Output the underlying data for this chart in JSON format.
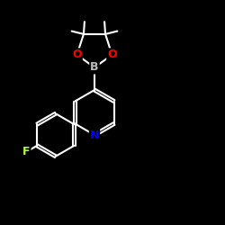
{
  "background_color": "#000000",
  "bond_color": "#ffffff",
  "bond_width": 1.5,
  "atom_colors": {
    "N": "#0000ff",
    "O": "#ff0000",
    "B": "#bbbbbb",
    "F": "#adff2f"
  },
  "figsize": [
    2.5,
    2.5
  ],
  "dpi": 100
}
